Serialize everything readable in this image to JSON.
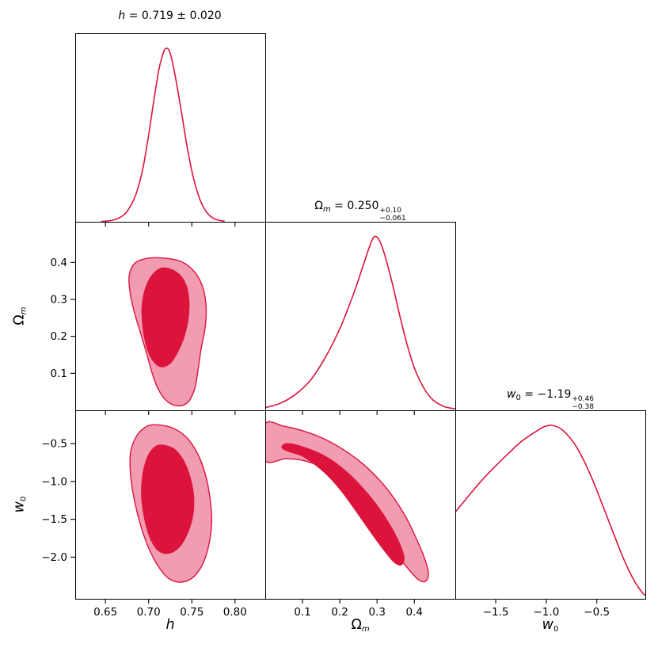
{
  "figure": {
    "kind": "corner-plot",
    "background": "#ffffff"
  },
  "style": {
    "curve_color": "#dc143c",
    "contour_inner_color": "#dc143c",
    "contour_outer_color": "#f19cb1",
    "contour_edge_color": "#dc143c",
    "axis_color": "#000000",
    "text_color": "#000000"
  },
  "chart_data": {
    "type": "corner",
    "description": "Triangle (corner) plot of marginalized posterior constraints on h, Omega_m and w0: 1D densities on the diagonal, filled 68%/95%-style contours below.",
    "parameter_order": [
      "h",
      "omega_m",
      "w0"
    ],
    "parameters": [
      {
        "id": "h",
        "label": {
          "base": "h",
          "sub": ""
        },
        "title": {
          "base": "h",
          "base_sub": "",
          "value": " = 0.719 ± 0.020",
          "err_plus": "",
          "err_minus": ""
        },
        "estimate": {
          "mean": 0.719,
          "err_plus": 0.02,
          "err_minus": 0.02
        },
        "range": [
          0.615,
          0.835
        ],
        "ticks": {
          "values": [
            0.65,
            0.7,
            0.75,
            0.8
          ],
          "labels": [
            "0.65",
            "0.70",
            "0.75",
            "0.80"
          ]
        },
        "ticks_y": {
          "values": [],
          "labels": []
        }
      },
      {
        "id": "omega_m",
        "label": {
          "base": "Ω",
          "sub": "m"
        },
        "title": {
          "base": "Ω",
          "base_sub": "m",
          "value": " = 0.250",
          "err_plus": "+0.10",
          "err_minus": "−0.061"
        },
        "estimate": {
          "mean": 0.25,
          "err_plus": 0.1,
          "err_minus": 0.061
        },
        "range": [
          0.0,
          0.51
        ],
        "ticks": {
          "values": [
            0.1,
            0.2,
            0.3,
            0.4
          ],
          "labels": [
            "0.1",
            "0.2",
            "0.3",
            "0.4"
          ]
        },
        "ticks_y": {
          "values": [
            0.1,
            0.2,
            0.3,
            0.4
          ],
          "labels": [
            "0.1",
            "0.2",
            "0.3",
            "0.4"
          ]
        }
      },
      {
        "id": "w0",
        "label": {
          "base": "w",
          "sub": "0"
        },
        "title": {
          "base": "w",
          "base_sub": "0",
          "value": " = −1.19",
          "err_plus": "+0.46",
          "err_minus": "−0.38"
        },
        "estimate": {
          "mean": -1.19,
          "err_plus": 0.46,
          "err_minus": 0.38
        },
        "range": [
          -1.9,
          -0.02
        ],
        "range_y": [
          -2.55,
          -0.06
        ],
        "ticks": {
          "values": [
            -1.5,
            -1.0,
            -0.5
          ],
          "labels": [
            "−1.5",
            "−1.0",
            "−0.5"
          ]
        },
        "ticks_y": {
          "values": [
            -0.5,
            -1.0,
            -1.5,
            -2.0
          ],
          "labels": [
            "−0.5",
            "−1.0",
            "−1.5",
            "−2.0"
          ]
        }
      }
    ],
    "densities_1d": {
      "h": {
        "x": [
          0.645,
          0.655,
          0.665,
          0.675,
          0.685,
          0.693,
          0.7,
          0.706,
          0.712,
          0.717,
          0.72,
          0.724,
          0.728,
          0.733,
          0.739,
          0.745,
          0.752,
          0.76,
          0.768,
          0.777,
          0.788
        ],
        "y": [
          0.002,
          0.006,
          0.02,
          0.06,
          0.155,
          0.3,
          0.5,
          0.7,
          0.88,
          0.975,
          1.0,
          0.985,
          0.91,
          0.78,
          0.6,
          0.42,
          0.25,
          0.12,
          0.05,
          0.015,
          0.003
        ]
      },
      "omega_m": {
        "x": [
          0.0,
          0.04,
          0.08,
          0.12,
          0.16,
          0.2,
          0.235,
          0.262,
          0.28,
          0.292,
          0.305,
          0.32,
          0.34,
          0.36,
          0.38,
          0.4,
          0.425,
          0.45,
          0.48,
          0.51
        ],
        "y": [
          0.015,
          0.04,
          0.09,
          0.17,
          0.3,
          0.47,
          0.66,
          0.83,
          0.945,
          1.0,
          0.985,
          0.9,
          0.74,
          0.555,
          0.385,
          0.245,
          0.13,
          0.06,
          0.022,
          0.008
        ]
      },
      "w0": {
        "x": [
          -1.9,
          -1.78,
          -1.65,
          -1.52,
          -1.38,
          -1.25,
          -1.12,
          -1.02,
          -0.95,
          -0.87,
          -0.79,
          -0.7,
          -0.61,
          -0.52,
          -0.43,
          -0.34,
          -0.26,
          -0.18,
          -0.11,
          -0.05,
          -0.02
        ],
        "y": [
          0.5,
          0.585,
          0.675,
          0.755,
          0.835,
          0.905,
          0.958,
          0.992,
          1.0,
          0.985,
          0.945,
          0.875,
          0.775,
          0.655,
          0.52,
          0.385,
          0.265,
          0.16,
          0.085,
          0.035,
          0.02
        ]
      }
    },
    "contours_2d": [
      {
        "x": "h",
        "y": "omega_m",
        "outer": [
          [
            0.716,
            0.412
          ],
          [
            0.738,
            0.402
          ],
          [
            0.754,
            0.372
          ],
          [
            0.763,
            0.33
          ],
          [
            0.7665,
            0.28
          ],
          [
            0.7655,
            0.225
          ],
          [
            0.761,
            0.17
          ],
          [
            0.7575,
            0.115
          ],
          [
            0.7535,
            0.06
          ],
          [
            0.7455,
            0.022
          ],
          [
            0.7335,
            0.012
          ],
          [
            0.7205,
            0.026
          ],
          [
            0.7105,
            0.06
          ],
          [
            0.7035,
            0.105
          ],
          [
            0.6975,
            0.155
          ],
          [
            0.6905,
            0.21
          ],
          [
            0.6835,
            0.265
          ],
          [
            0.6785,
            0.318
          ],
          [
            0.6775,
            0.365
          ],
          [
            0.684,
            0.398
          ],
          [
            0.698,
            0.411
          ]
        ],
        "inner": [
          [
            0.717,
            0.385
          ],
          [
            0.733,
            0.372
          ],
          [
            0.743,
            0.34
          ],
          [
            0.7465,
            0.295
          ],
          [
            0.7455,
            0.245
          ],
          [
            0.741,
            0.2
          ],
          [
            0.734,
            0.16
          ],
          [
            0.725,
            0.128
          ],
          [
            0.714,
            0.118
          ],
          [
            0.704,
            0.138
          ],
          [
            0.6975,
            0.175
          ],
          [
            0.6935,
            0.225
          ],
          [
            0.6925,
            0.28
          ],
          [
            0.6965,
            0.33
          ],
          [
            0.705,
            0.368
          ]
        ]
      },
      {
        "x": "h",
        "y": "w0",
        "outer": [
          [
            0.706,
            -0.25
          ],
          [
            0.727,
            -0.29
          ],
          [
            0.744,
            -0.42
          ],
          [
            0.757,
            -0.64
          ],
          [
            0.766,
            -0.92
          ],
          [
            0.771,
            -1.22
          ],
          [
            0.773,
            -1.52
          ],
          [
            0.77,
            -1.82
          ],
          [
            0.763,
            -2.08
          ],
          [
            0.752,
            -2.26
          ],
          [
            0.738,
            -2.33
          ],
          [
            0.723,
            -2.28
          ],
          [
            0.71,
            -2.1
          ],
          [
            0.699,
            -1.85
          ],
          [
            0.69,
            -1.55
          ],
          [
            0.683,
            -1.22
          ],
          [
            0.679,
            -0.9
          ],
          [
            0.679,
            -0.62
          ],
          [
            0.685,
            -0.42
          ],
          [
            0.694,
            -0.3
          ]
        ],
        "inner": [
          [
            0.714,
            -0.52
          ],
          [
            0.729,
            -0.57
          ],
          [
            0.74,
            -0.72
          ],
          [
            0.748,
            -0.95
          ],
          [
            0.752,
            -1.2
          ],
          [
            0.751,
            -1.45
          ],
          [
            0.745,
            -1.68
          ],
          [
            0.735,
            -1.87
          ],
          [
            0.722,
            -1.95
          ],
          [
            0.71,
            -1.9
          ],
          [
            0.701,
            -1.72
          ],
          [
            0.695,
            -1.47
          ],
          [
            0.692,
            -1.2
          ],
          [
            0.693,
            -0.93
          ],
          [
            0.698,
            -0.7
          ],
          [
            0.705,
            -0.57
          ]
        ]
      },
      {
        "x": "omega_m",
        "y": "w0",
        "outer": [
          [
            0.0,
            -0.24
          ],
          [
            0.05,
            -0.27
          ],
          [
            0.1,
            -0.33
          ],
          [
            0.15,
            -0.42
          ],
          [
            0.2,
            -0.55
          ],
          [
            0.25,
            -0.72
          ],
          [
            0.295,
            -0.92
          ],
          [
            0.335,
            -1.15
          ],
          [
            0.375,
            -1.45
          ],
          [
            0.405,
            -1.75
          ],
          [
            0.428,
            -2.02
          ],
          [
            0.438,
            -2.22
          ],
          [
            0.43,
            -2.32
          ],
          [
            0.412,
            -2.3
          ],
          [
            0.388,
            -2.18
          ],
          [
            0.355,
            -1.98
          ],
          [
            0.318,
            -1.72
          ],
          [
            0.278,
            -1.44
          ],
          [
            0.235,
            -1.16
          ],
          [
            0.19,
            -0.95
          ],
          [
            0.145,
            -0.8
          ],
          [
            0.1,
            -0.72
          ],
          [
            0.055,
            -0.7
          ],
          [
            0.0,
            -0.72
          ]
        ],
        "inner": [
          [
            0.06,
            -0.5
          ],
          [
            0.11,
            -0.56
          ],
          [
            0.165,
            -0.68
          ],
          [
            0.215,
            -0.86
          ],
          [
            0.26,
            -1.08
          ],
          [
            0.3,
            -1.32
          ],
          [
            0.335,
            -1.58
          ],
          [
            0.36,
            -1.82
          ],
          [
            0.372,
            -2.0
          ],
          [
            0.365,
            -2.1
          ],
          [
            0.345,
            -2.06
          ],
          [
            0.318,
            -1.9
          ],
          [
            0.285,
            -1.68
          ],
          [
            0.248,
            -1.42
          ],
          [
            0.21,
            -1.16
          ],
          [
            0.172,
            -0.94
          ],
          [
            0.135,
            -0.78
          ],
          [
            0.098,
            -0.66
          ],
          [
            0.062,
            -0.6
          ],
          [
            0.045,
            -0.55
          ]
        ]
      }
    ]
  }
}
